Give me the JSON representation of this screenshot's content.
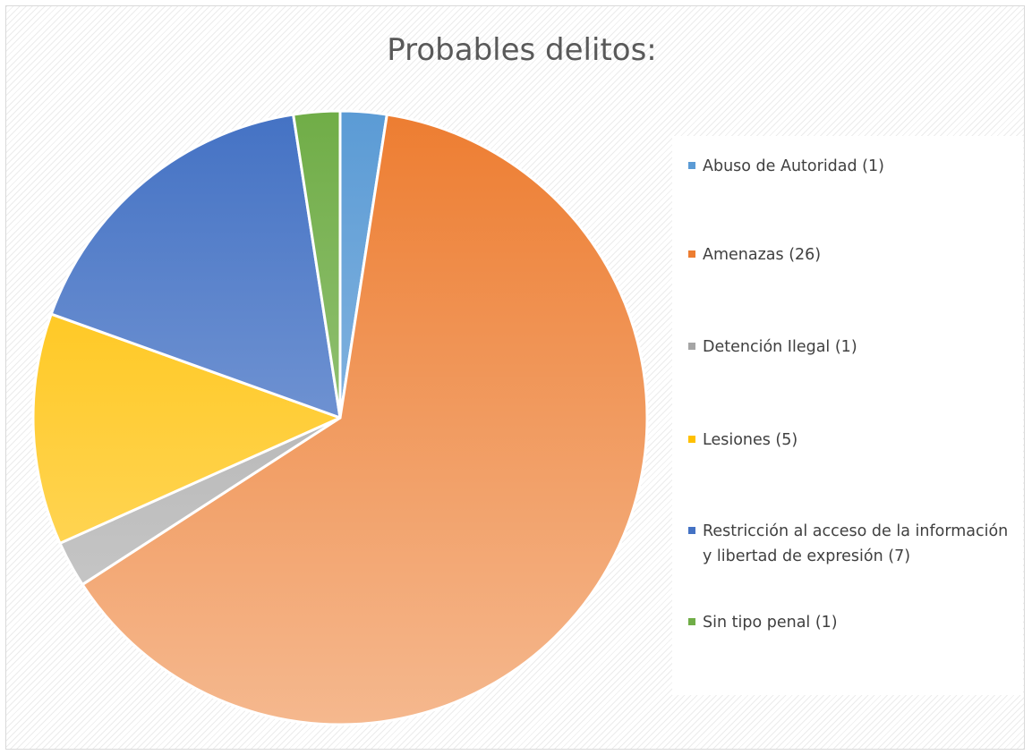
{
  "chart_data": {
    "type": "pie",
    "title": "Probables delitos:",
    "categories": [
      "Abuso de Autoridad (1)",
      "Amenazas (26)",
      "Detención Ilegal (1)",
      "Lesiones (5)",
      "Restricción al acceso de la información y libertad de expresión (7)",
      "Sin tipo penal (1)"
    ],
    "values": [
      1,
      26,
      1,
      5,
      7,
      1
    ],
    "colors": [
      "#5b9bd5",
      "#ed7d31",
      "#a5a5a5",
      "#ffc000",
      "#4472c4",
      "#70ad47"
    ],
    "legend_position": "right"
  }
}
